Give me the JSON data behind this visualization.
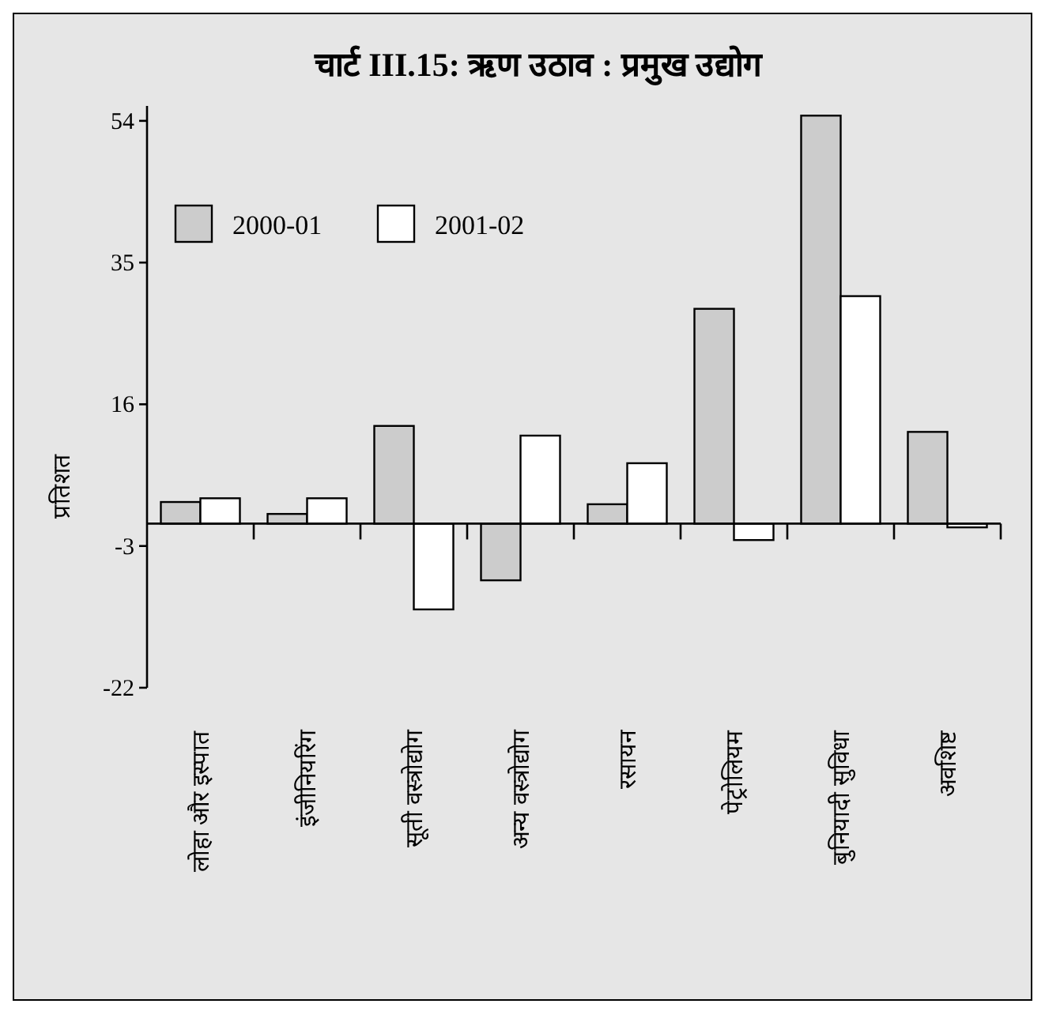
{
  "chart_data": {
    "type": "bar",
    "title": "चार्ट III.15: ऋण उठाव : प्रमुख उद्योग",
    "ylabel": "प्रतिशत",
    "categories": [
      "लोहा और इस्पात",
      "इंजीनियरिंग",
      "सूती वस्त्रोद्योग",
      "अन्य वस्त्रोद्योग",
      "रसायन",
      "पेट्रोलियम",
      "बुनियादी सुविधा",
      "अवशिष्ट"
    ],
    "series": [
      {
        "name": "2000-01",
        "color": "#cccccc",
        "values": [
          2.9,
          1.3,
          13.1,
          -7.6,
          2.6,
          28.8,
          54.7,
          12.3
        ]
      },
      {
        "name": "2001-02",
        "color": "#ffffff",
        "values": [
          3.4,
          3.4,
          -11.5,
          11.8,
          8.1,
          -2.2,
          30.5,
          -0.5
        ]
      }
    ],
    "ylim": [
      -22,
      56
    ],
    "yticks": [
      -22,
      -3,
      16,
      35,
      54
    ],
    "grid": false,
    "legend": "top left"
  }
}
